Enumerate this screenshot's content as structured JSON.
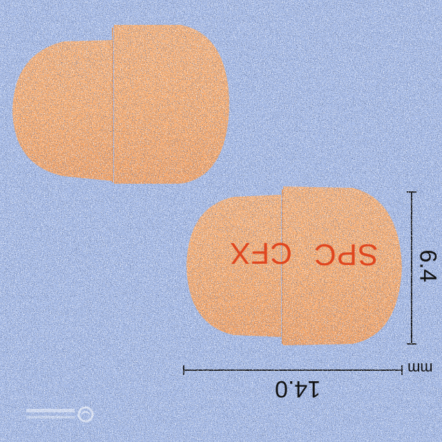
{
  "image": {
    "subject": "capsule-pill-photo",
    "background_color": "#a9bde8",
    "capsule_color": "#f7ad73",
    "imprint_color": "#e0461f"
  },
  "imprint": {
    "left_text": "CFX",
    "right_text": "SPC"
  },
  "dimensions": {
    "length": "14.0",
    "width": "6.4",
    "unit": "mm"
  },
  "watermark": {
    "lines": [
      "식품의약품안전처",
      "Ministry of Food and Drug Safety"
    ]
  }
}
